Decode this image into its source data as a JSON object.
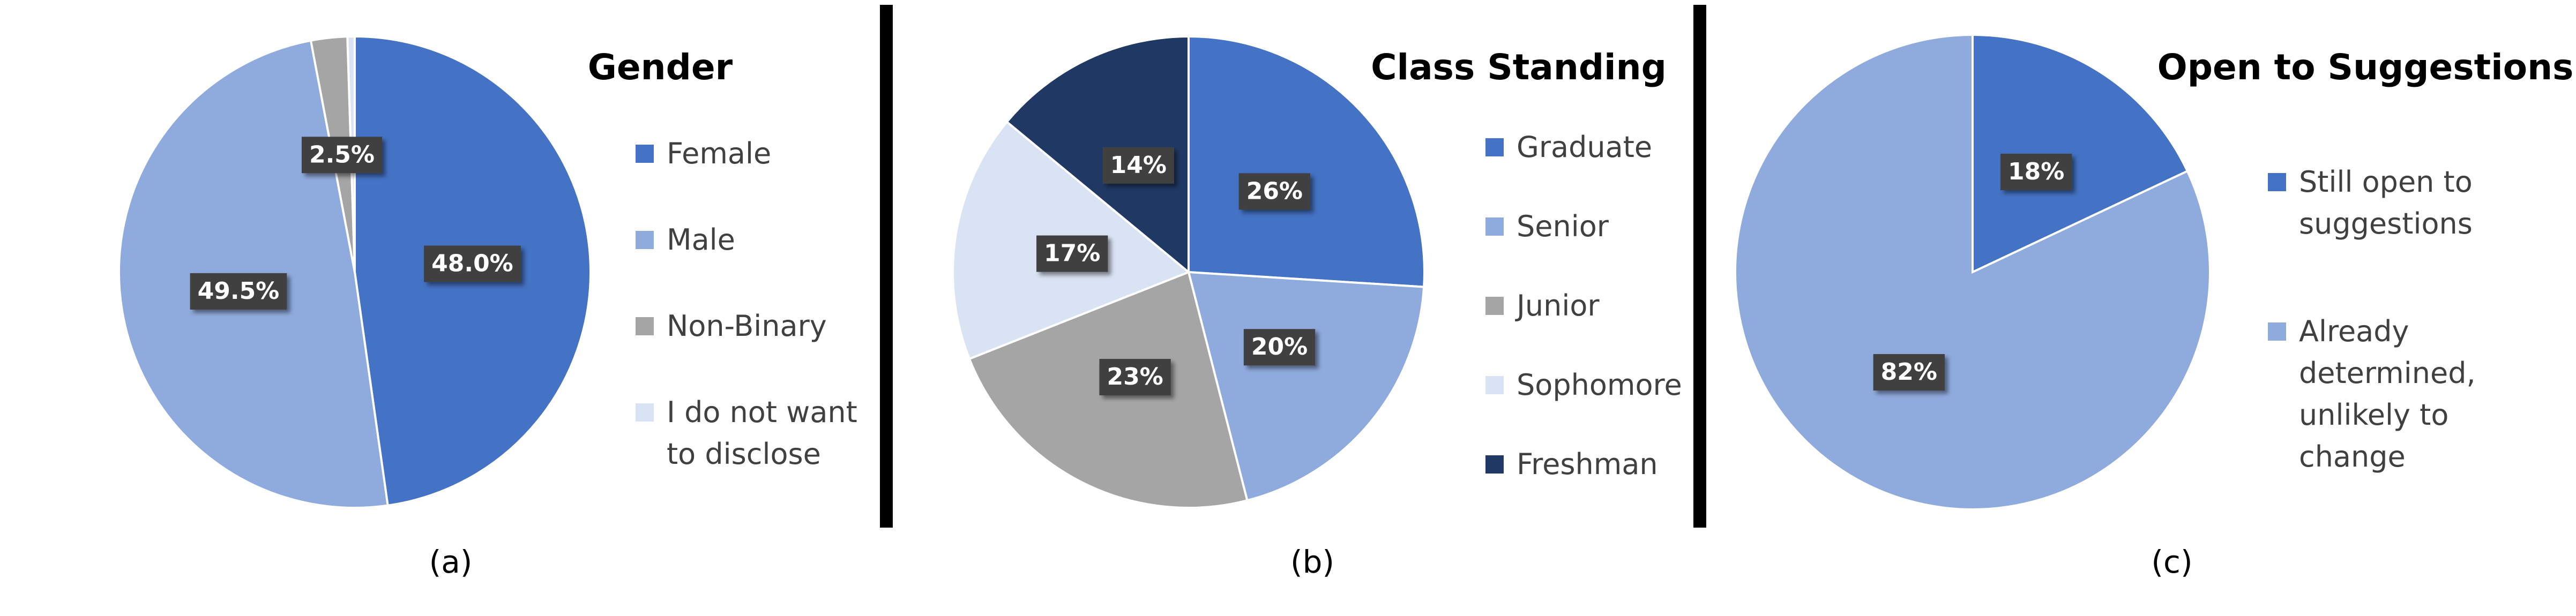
{
  "chart_data": [
    {
      "type": "pie",
      "title": "Gender",
      "caption": "(a)",
      "categories": [
        "Female",
        "Male",
        "Non-Binary",
        "I do not want to disclose"
      ],
      "values": [
        48.0,
        49.5,
        2.5,
        0.5
      ],
      "value_labels": [
        "48.0%",
        "49.5%",
        "2.5%",
        null
      ],
      "colors": [
        "#4472c4",
        "#8faadc",
        "#a5a5a5",
        "#dae3f3"
      ]
    },
    {
      "type": "pie",
      "title": "Class Standing",
      "caption": "(b)",
      "categories": [
        "Graduate",
        "Senior",
        "Junior",
        "Sophomore",
        "Freshman"
      ],
      "values": [
        26,
        20,
        23,
        17,
        14
      ],
      "value_labels": [
        "26%",
        "20%",
        "23%",
        "17%",
        "14%"
      ],
      "colors": [
        "#4472c4",
        "#8faadc",
        "#a5a5a5",
        "#dae3f3",
        "#203864"
      ]
    },
    {
      "type": "pie",
      "title": "Open to Suggestions",
      "caption": "(c)",
      "categories": [
        "Still open to suggestions",
        "Already determined, unlikely to change"
      ],
      "values": [
        18,
        82
      ],
      "value_labels": [
        "18%",
        "82%"
      ],
      "colors": [
        "#4472c4",
        "#8faadc"
      ]
    }
  ]
}
